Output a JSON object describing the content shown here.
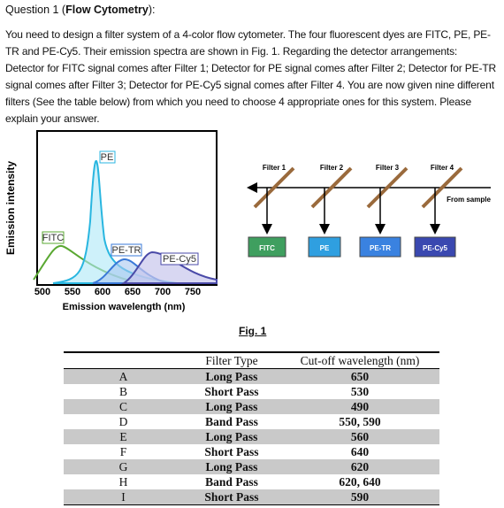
{
  "header": {
    "prefix": "Question 1 (",
    "bold": "Flow Cytometry",
    "suffix": "):"
  },
  "body": "You need to design a filter system of a 4-color flow cytometer. The four fluorescent dyes are FITC, PE, PE-TR and PE-Cy5. Their emission spectra are shown in Fig. 1. Regarding the detector arrangements: Detector for FITC signal comes after Filter 1; Detector for PE signal comes after Filter 2; Detector for PE-TR signal comes after Filter 3; Detector for PE-Cy5 signal comes after Filter 4. You are now given nine different filters (See the table below) from which you need to choose 4 appropriate ones for this system. Please explain your answer.",
  "figure": {
    "y_label": "Emission intensity",
    "x_label": "Emission wavelength (nm)",
    "x_ticks": [
      "500",
      "550",
      "600",
      "650",
      "700",
      "750"
    ],
    "curve_labels": [
      "FITC",
      "PE",
      "PE-TR",
      "PE-Cy5"
    ],
    "filter_labels": [
      "Filter 1",
      "Filter 2",
      "Filter 3",
      "Filter 4"
    ],
    "detector_labels": [
      "FITC",
      "PE",
      "PE-TR",
      "PE-Cy5"
    ],
    "from_sample": "From sample",
    "caption": "Fig. 1"
  },
  "table": {
    "header": [
      "Filter Type",
      "Cut-off wavelength (nm)"
    ],
    "rows": [
      [
        "A",
        "Long Pass",
        "650"
      ],
      [
        "B",
        "Short Pass",
        "530"
      ],
      [
        "C",
        "Long Pass",
        "490"
      ],
      [
        "D",
        "Band Pass",
        "550, 590"
      ],
      [
        "E",
        "Long Pass",
        "560"
      ],
      [
        "F",
        "Short Pass",
        "640"
      ],
      [
        "G",
        "Long Pass",
        "620"
      ],
      [
        "H",
        "Band Pass",
        "620, 640"
      ],
      [
        "I",
        "Short Pass",
        "590"
      ]
    ]
  }
}
